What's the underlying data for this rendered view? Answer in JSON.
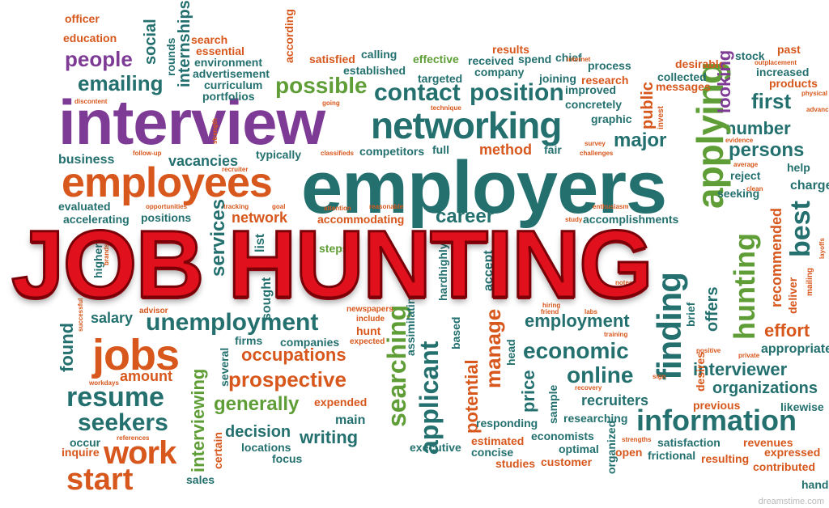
{
  "headline": "JOB HUNTING",
  "colors": {
    "purple": "#7e3b95",
    "teal": "#23706f",
    "orange": "#d7571c",
    "green": "#5f9e36",
    "headline_red": "#e0101c"
  },
  "words": [
    "officer",
    "education",
    "people",
    "emailing",
    "interview",
    "employees",
    "employers",
    "networking",
    "contact",
    "position",
    "possible",
    "business",
    "vacancies",
    "evaluated",
    "accelerating",
    "positions",
    "network",
    "career",
    "accommodating",
    "accomplishments",
    "competitors",
    "method",
    "major",
    "number",
    "persons",
    "first",
    "applying",
    "finding",
    "hunting",
    "best",
    "services",
    "salary",
    "unemployment",
    "jobs",
    "found",
    "amount",
    "resume",
    "seekers",
    "work",
    "start",
    "interviewing",
    "occupations",
    "prospective",
    "generally",
    "decision",
    "writing",
    "searching",
    "applicant",
    "potential",
    "manage",
    "price",
    "economic",
    "employment",
    "online",
    "information",
    "interviewer",
    "organizations",
    "effort",
    "appropriate",
    "recruiters",
    "researching",
    "economists",
    "customer",
    "optimal",
    "organized",
    "satisfaction",
    "frictional",
    "resulting",
    "revenues",
    "expressed",
    "contributed",
    "hand",
    "likewise",
    "previous",
    "occur",
    "inquire",
    "sales",
    "focus",
    "locations",
    "executive",
    "estimated",
    "concise",
    "studies",
    "responding",
    "main",
    "expended",
    "firms",
    "companies",
    "several",
    "certain",
    "search",
    "essential",
    "environment",
    "advertisement",
    "curriculum",
    "portfolios",
    "according",
    "satisfied",
    "calling",
    "established",
    "effective",
    "received",
    "company",
    "spend",
    "chief",
    "process",
    "joining",
    "improved",
    "research",
    "concretely",
    "collected",
    "messages",
    "desirable",
    "stock",
    "past",
    "increased",
    "products",
    "typically",
    "full",
    "fair",
    "graphic",
    "public",
    "looking",
    "targeted",
    "results",
    "social",
    "rounds",
    "internships",
    "reject",
    "help",
    "charge",
    "seeking",
    "recommended",
    "deliver",
    "offers",
    "brief",
    "sought",
    "list",
    "steps",
    "accept",
    "based",
    "head",
    "sample",
    "hardhighly",
    "assimilating",
    "internet",
    "invest",
    "advisor",
    "newspapers",
    "include",
    "hunt",
    "expected",
    "opportunities",
    "goal",
    "reasonable",
    "enthusiasm",
    "study",
    "hiring",
    "friend",
    "labs",
    "training",
    "notes",
    "open",
    "strengths",
    "private",
    "positive",
    "desires",
    "sign",
    "recovery",
    "mailing",
    "layoffs",
    "outplacement",
    "physical",
    "advance",
    "clean",
    "average",
    "evidence",
    "challenges",
    "survey",
    "technique",
    "attention",
    "tracking",
    "classifieds",
    "follow-up",
    "recruiter",
    "strength",
    "going",
    "discontent",
    "references",
    "workdays",
    "successful",
    "higher",
    "brands pay"
  ],
  "watermark": "dreamstime.com"
}
